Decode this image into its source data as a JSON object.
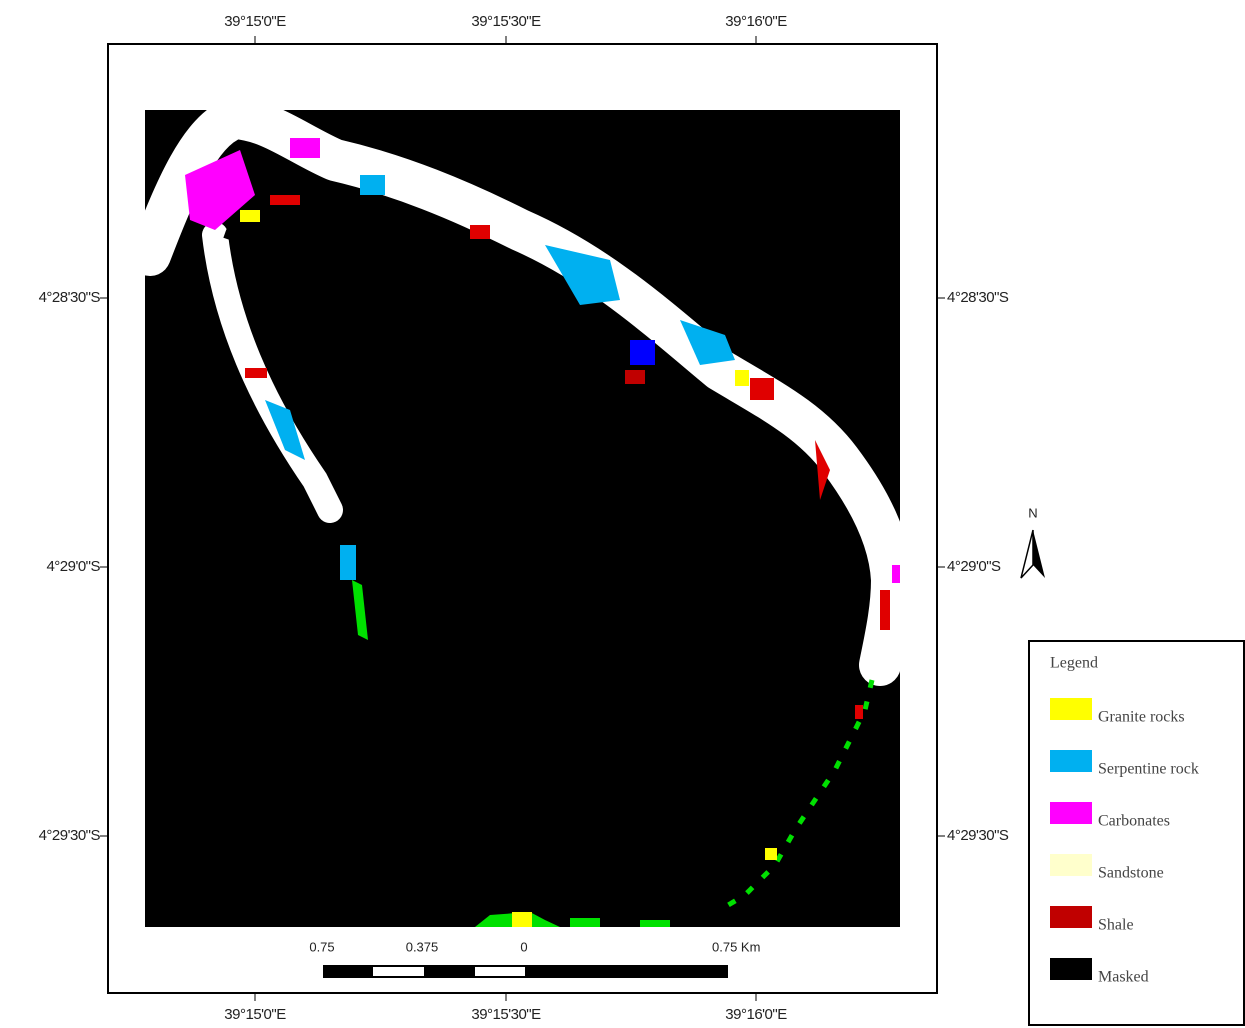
{
  "map": {
    "top_labels": [
      "39°15'0\"E",
      "39°15'30\"E",
      "39°16'0\"E"
    ],
    "bottom_labels": [
      "39°15'0\"E",
      "39°15'30\"E",
      "39°16'0\"E"
    ],
    "left_labels": [
      "4°28'30\"S",
      "4°29'0\"S",
      "4°29'30\"S"
    ],
    "right_labels": [
      "4°28'30\"S",
      "4°29'0\"S",
      "4°29'30\"S"
    ],
    "scale_bar": [
      "0.75",
      "0.375",
      "0",
      "0.75 Km"
    ],
    "north": "N"
  },
  "legend": {
    "title": "Legend",
    "items": [
      {
        "label": "Granite rocks",
        "color": "#ffff00"
      },
      {
        "label": "Serpentine rock",
        "color": "#00b0f0"
      },
      {
        "label": "Carbonates",
        "color": "#ff00ff"
      },
      {
        "label": "Sandstone",
        "color": "#ffffcc"
      },
      {
        "label": "Shale",
        "color": "#c00000"
      },
      {
        "label": "Masked",
        "color": "#000000"
      }
    ]
  }
}
